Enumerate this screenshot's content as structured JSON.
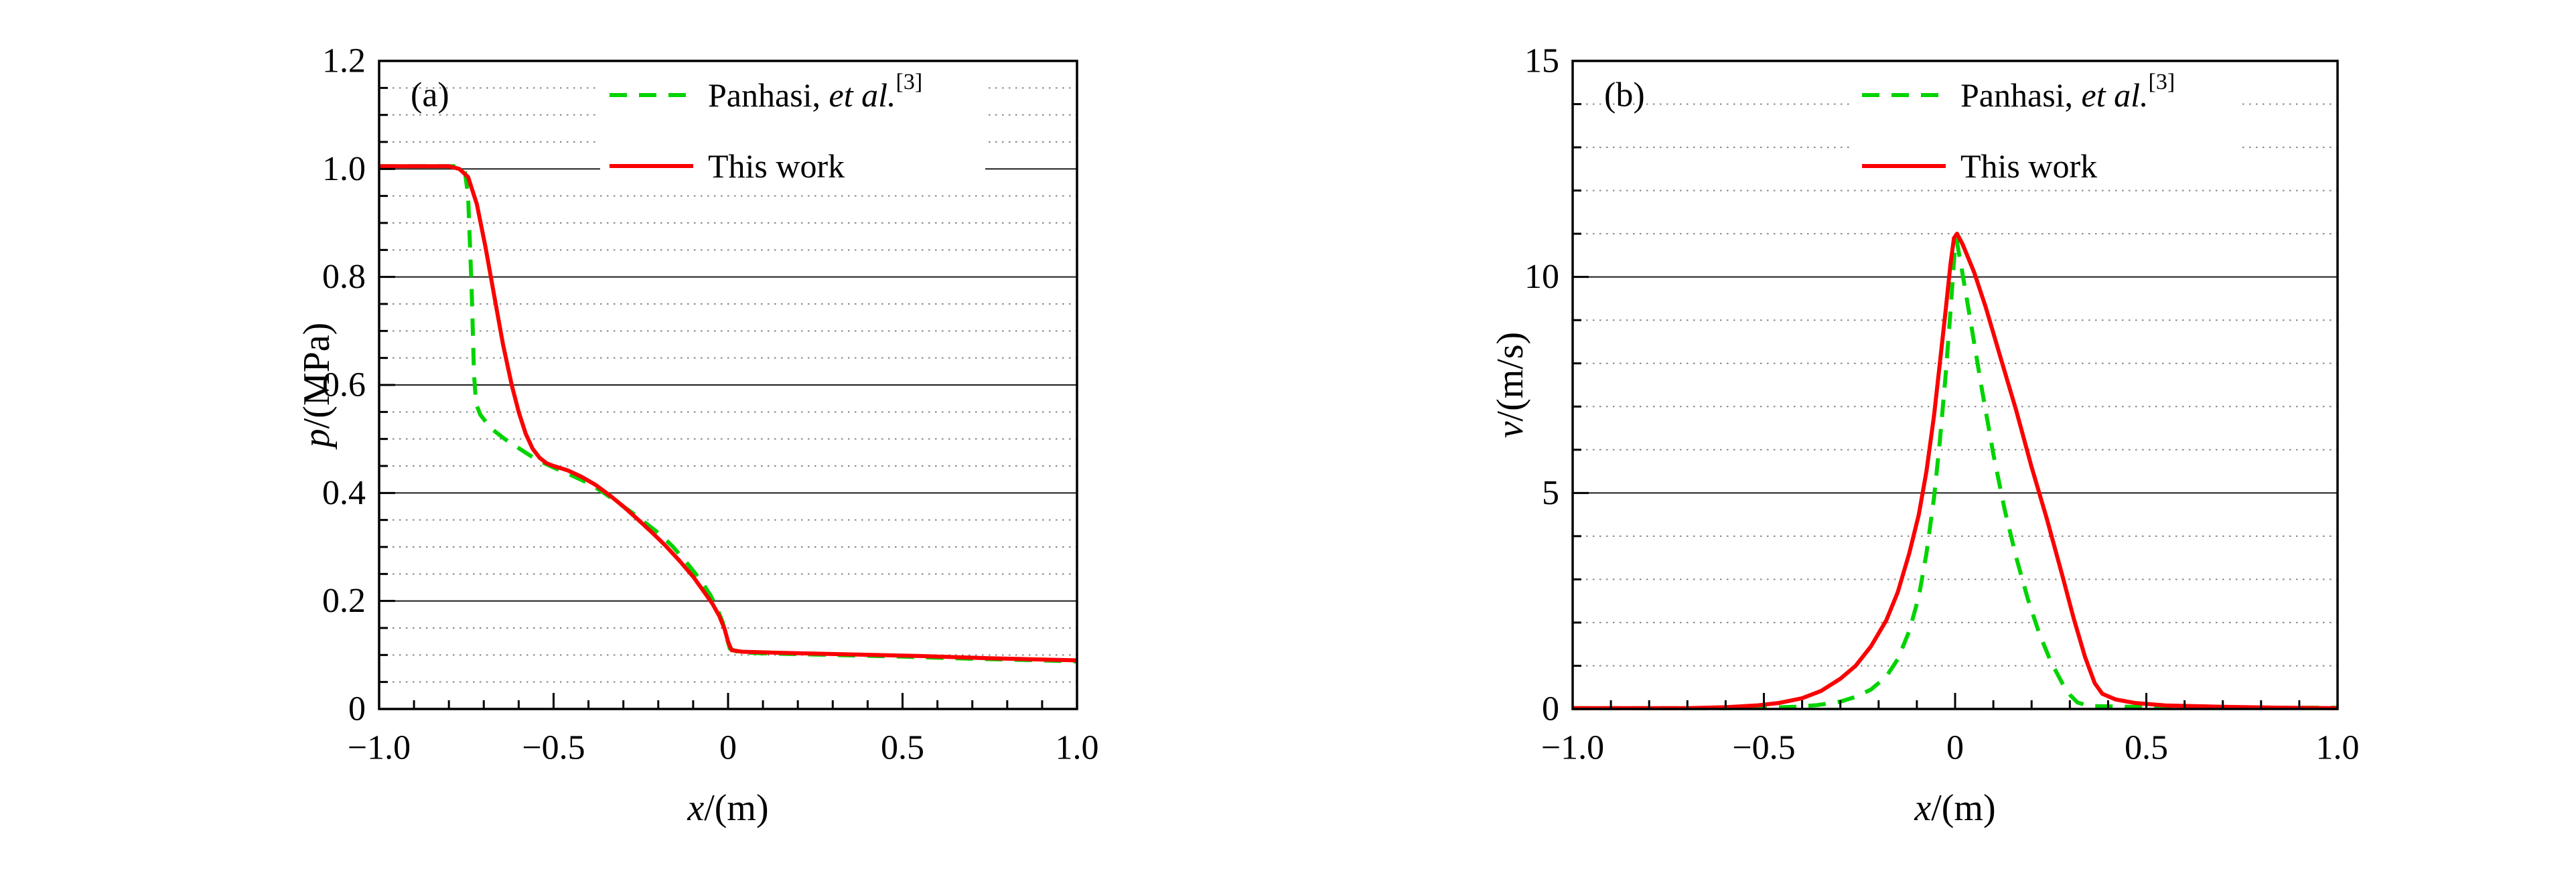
{
  "figure": {
    "background": "#ffffff",
    "description_panels": [
      "(a)",
      "(b)"
    ]
  },
  "chart_data": [
    {
      "type": "line",
      "panel_label": "(a)",
      "xlabel": "x/(m)",
      "xlabel_var": "x",
      "xlabel_rest": "/(m)",
      "ylabel": "p/(MPa)",
      "ylabel_var": "p",
      "ylabel_rest": "/(MPa)",
      "xlim": [
        -1.0,
        1.0
      ],
      "ylim": [
        0,
        1.2
      ],
      "xticks": {
        "values": [
          -1.0,
          -0.5,
          0,
          0.5,
          1.0
        ],
        "labels": [
          "−1.0",
          "−0.5",
          "0",
          "0.5",
          "1.0"
        ],
        "minor_step": 0.1
      },
      "yticks": {
        "values": [
          0,
          0.2,
          0.4,
          0.6,
          0.8,
          1.0,
          1.2
        ],
        "labels": [
          "0",
          "0.2",
          "0.4",
          "0.6",
          "0.8",
          "1.0",
          "1.2"
        ],
        "minor_step": 0.05
      },
      "grid": {
        "horizontal_solid": [
          0.2,
          0.4,
          0.6,
          0.8,
          1.0
        ],
        "horizontal_dotted_step": 0.05,
        "vertical": false
      },
      "style": {
        "solid_grid_color": "#2a2a2a",
        "dotted_grid_color": "#848484",
        "axis_color": "#000000"
      },
      "legend": {
        "position": "top-inside",
        "entries": [
          "Panhasi, et al.[3]",
          "This work"
        ]
      },
      "series": [
        {
          "name": "Panhasi, et al.[3]",
          "label_prefix": "Panhasi, ",
          "label_italic": "et al.",
          "label_sup": "[3]",
          "color": "#00d400",
          "line_style": "dashed",
          "points": [
            [
              -1,
              1.005
            ],
            [
              -0.78,
              1.005
            ],
            [
              -0.755,
              1.0
            ],
            [
              -0.745,
              0.95
            ],
            [
              -0.735,
              0.78
            ],
            [
              -0.728,
              0.62
            ],
            [
              -0.722,
              0.565
            ],
            [
              -0.71,
              0.545
            ],
            [
              -0.68,
              0.52
            ],
            [
              -0.64,
              0.5
            ],
            [
              -0.6,
              0.483
            ],
            [
              -0.55,
              0.462
            ],
            [
              -0.5,
              0.447
            ],
            [
              -0.45,
              0.433
            ],
            [
              -0.4,
              0.418
            ],
            [
              -0.36,
              0.402
            ],
            [
              -0.32,
              0.384
            ],
            [
              -0.28,
              0.366
            ],
            [
              -0.24,
              0.346
            ],
            [
              -0.2,
              0.326
            ],
            [
              -0.16,
              0.302
            ],
            [
              -0.12,
              0.272
            ],
            [
              -0.08,
              0.24
            ],
            [
              -0.05,
              0.21
            ],
            [
              -0.03,
              0.184
            ],
            [
              -0.015,
              0.16
            ],
            [
              -0.005,
              0.134
            ],
            [
              0.005,
              0.112
            ],
            [
              0.03,
              0.105
            ],
            [
              0.1,
              0.103
            ],
            [
              0.3,
              0.1
            ],
            [
              0.5,
              0.097
            ],
            [
              0.7,
              0.093
            ],
            [
              0.9,
              0.09
            ],
            [
              1,
              0.088
            ]
          ]
        },
        {
          "name": "This work",
          "label_prefix": "This work",
          "label_italic": "",
          "label_sup": "",
          "color": "#fb0000",
          "line_style": "solid",
          "points": [
            [
              -1,
              1.005
            ],
            [
              -0.8,
              1.005
            ],
            [
              -0.77,
              1.0
            ],
            [
              -0.745,
              0.985
            ],
            [
              -0.72,
              0.935
            ],
            [
              -0.695,
              0.855
            ],
            [
              -0.67,
              0.765
            ],
            [
              -0.645,
              0.675
            ],
            [
              -0.62,
              0.6
            ],
            [
              -0.6,
              0.55
            ],
            [
              -0.58,
              0.51
            ],
            [
              -0.56,
              0.482
            ],
            [
              -0.54,
              0.465
            ],
            [
              -0.52,
              0.455
            ],
            [
              -0.5,
              0.45
            ],
            [
              -0.46,
              0.442
            ],
            [
              -0.42,
              0.43
            ],
            [
              -0.38,
              0.415
            ],
            [
              -0.34,
              0.396
            ],
            [
              -0.3,
              0.375
            ],
            [
              -0.26,
              0.352
            ],
            [
              -0.22,
              0.328
            ],
            [
              -0.18,
              0.303
            ],
            [
              -0.14,
              0.275
            ],
            [
              -0.1,
              0.245
            ],
            [
              -0.07,
              0.218
            ],
            [
              -0.045,
              0.195
            ],
            [
              -0.025,
              0.172
            ],
            [
              -0.01,
              0.148
            ],
            [
              0,
              0.125
            ],
            [
              0.01,
              0.109
            ],
            [
              0.04,
              0.106
            ],
            [
              0.15,
              0.104
            ],
            [
              0.35,
              0.101
            ],
            [
              0.55,
              0.098
            ],
            [
              0.75,
              0.094
            ],
            [
              1,
              0.09
            ]
          ]
        }
      ]
    },
    {
      "type": "line",
      "panel_label": "(b)",
      "xlabel": "x/(m)",
      "xlabel_var": "x",
      "xlabel_rest": "/(m)",
      "ylabel": "v/(m/s)",
      "ylabel_var": "v",
      "ylabel_rest": "/(m/s)",
      "xlim": [
        -1.0,
        1.0
      ],
      "ylim": [
        0,
        15
      ],
      "xticks": {
        "values": [
          -1.0,
          -0.5,
          0,
          0.5,
          1.0
        ],
        "labels": [
          "−1.0",
          "−0.5",
          "0",
          "0.5",
          "1.0"
        ],
        "minor_step": 0.1
      },
      "yticks": {
        "values": [
          0,
          5,
          10,
          15
        ],
        "labels": [
          "0",
          "5",
          "10",
          "15"
        ],
        "minor_step": 1
      },
      "grid": {
        "horizontal_solid": [
          5,
          10
        ],
        "horizontal_dotted_step": 1,
        "vertical": false
      },
      "style": {
        "solid_grid_color": "#2a2a2a",
        "dotted_grid_color": "#848484",
        "axis_color": "#000000"
      },
      "legend": {
        "position": "top-inside",
        "entries": [
          "Panhasi, et al.[3]",
          "This work"
        ]
      },
      "series": [
        {
          "name": "Panhasi, et al.[3]",
          "label_prefix": "Panhasi, ",
          "label_italic": "et al.",
          "label_sup": "[3]",
          "color": "#00d400",
          "line_style": "dashed",
          "points": [
            [
              -1,
              0.02
            ],
            [
              -0.6,
              0.02
            ],
            [
              -0.5,
              0.03
            ],
            [
              -0.42,
              0.05
            ],
            [
              -0.36,
              0.09
            ],
            [
              -0.3,
              0.17
            ],
            [
              -0.26,
              0.28
            ],
            [
              -0.22,
              0.45
            ],
            [
              -0.18,
              0.75
            ],
            [
              -0.15,
              1.15
            ],
            [
              -0.12,
              1.8
            ],
            [
              -0.095,
              2.6
            ],
            [
              -0.075,
              3.6
            ],
            [
              -0.055,
              4.9
            ],
            [
              -0.04,
              6.2
            ],
            [
              -0.025,
              7.7
            ],
            [
              -0.012,
              9.2
            ],
            [
              -0.002,
              10.5
            ],
            [
              0.004,
              10.85
            ],
            [
              0.015,
              10.3
            ],
            [
              0.04,
              9.0
            ],
            [
              0.07,
              7.4
            ],
            [
              0.1,
              5.9
            ],
            [
              0.13,
              4.6
            ],
            [
              0.16,
              3.5
            ],
            [
              0.19,
              2.55
            ],
            [
              0.22,
              1.75
            ],
            [
              0.25,
              1.1
            ],
            [
              0.28,
              0.6
            ],
            [
              0.3,
              0.33
            ],
            [
              0.32,
              0.15
            ],
            [
              0.35,
              0.07
            ],
            [
              0.45,
              0.05
            ],
            [
              0.6,
              0.04
            ],
            [
              0.8,
              0.03
            ],
            [
              1,
              0.03
            ]
          ]
        },
        {
          "name": "This work",
          "label_prefix": "This work",
          "label_italic": "",
          "label_sup": "",
          "color": "#fb0000",
          "line_style": "solid",
          "points": [
            [
              -1,
              0.02
            ],
            [
              -0.7,
              0.02
            ],
            [
              -0.6,
              0.04
            ],
            [
              -0.52,
              0.08
            ],
            [
              -0.46,
              0.14
            ],
            [
              -0.4,
              0.25
            ],
            [
              -0.35,
              0.42
            ],
            [
              -0.3,
              0.7
            ],
            [
              -0.26,
              1.0
            ],
            [
              -0.22,
              1.45
            ],
            [
              -0.18,
              2.05
            ],
            [
              -0.15,
              2.7
            ],
            [
              -0.12,
              3.6
            ],
            [
              -0.095,
              4.5
            ],
            [
              -0.075,
              5.5
            ],
            [
              -0.055,
              6.8
            ],
            [
              -0.04,
              8.0
            ],
            [
              -0.025,
              9.2
            ],
            [
              -0.012,
              10.3
            ],
            [
              -0.003,
              10.9
            ],
            [
              0.005,
              11.0
            ],
            [
              0.02,
              10.75
            ],
            [
              0.05,
              10.1
            ],
            [
              0.08,
              9.3
            ],
            [
              0.12,
              8.1
            ],
            [
              0.16,
              6.9
            ],
            [
              0.2,
              5.6
            ],
            [
              0.24,
              4.4
            ],
            [
              0.28,
              3.1
            ],
            [
              0.31,
              2.1
            ],
            [
              0.34,
              1.2
            ],
            [
              0.365,
              0.6
            ],
            [
              0.385,
              0.35
            ],
            [
              0.42,
              0.22
            ],
            [
              0.47,
              0.14
            ],
            [
              0.55,
              0.08
            ],
            [
              0.7,
              0.05
            ],
            [
              0.85,
              0.03
            ],
            [
              1,
              0.02
            ]
          ]
        }
      ]
    }
  ]
}
